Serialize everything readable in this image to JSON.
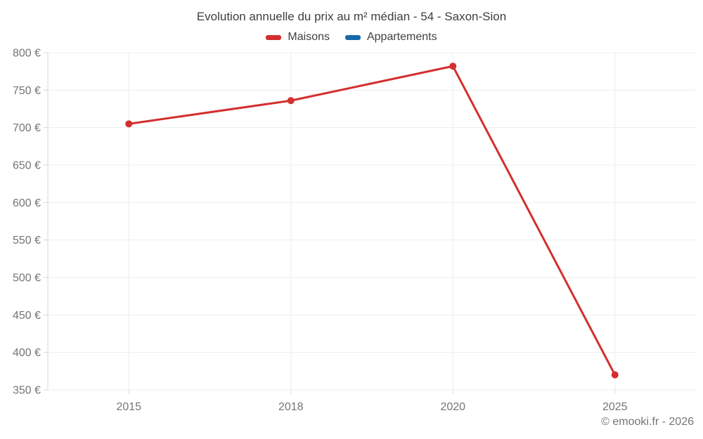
{
  "header": {
    "title": "Evolution annuelle du prix au m² médian - 54 - Saxon-Sion"
  },
  "legend": {
    "items": [
      {
        "label": "Maisons",
        "color": "#d32f2f"
      },
      {
        "label": "Appartements",
        "color": "#1769aa"
      }
    ]
  },
  "footer": {
    "text": "© emooki.fr - 2026"
  },
  "chart_data": {
    "type": "line",
    "title": "Evolution annuelle du prix au m² médian - 54 - Saxon-Sion",
    "categories": [
      "2015",
      "2018",
      "2020",
      "2025"
    ],
    "series": [
      {
        "name": "Maisons",
        "color": "#d32f2f",
        "values": [
          705,
          736,
          782,
          370
        ]
      },
      {
        "name": "Appartements",
        "color": "#1769aa",
        "values": []
      }
    ],
    "xlabel": "",
    "ylabel": "",
    "ylim": [
      350,
      800
    ],
    "y_ticks": [
      350,
      400,
      450,
      500,
      550,
      600,
      650,
      700,
      750,
      800
    ],
    "y_tick_suffix": " €",
    "grid": true,
    "legend_position": "top",
    "marker": "circle"
  },
  "colors": {
    "grid": "#ededed",
    "axis": "#d8d8d8",
    "tick_text": "#757575",
    "title_text": "#3f3f3f"
  }
}
